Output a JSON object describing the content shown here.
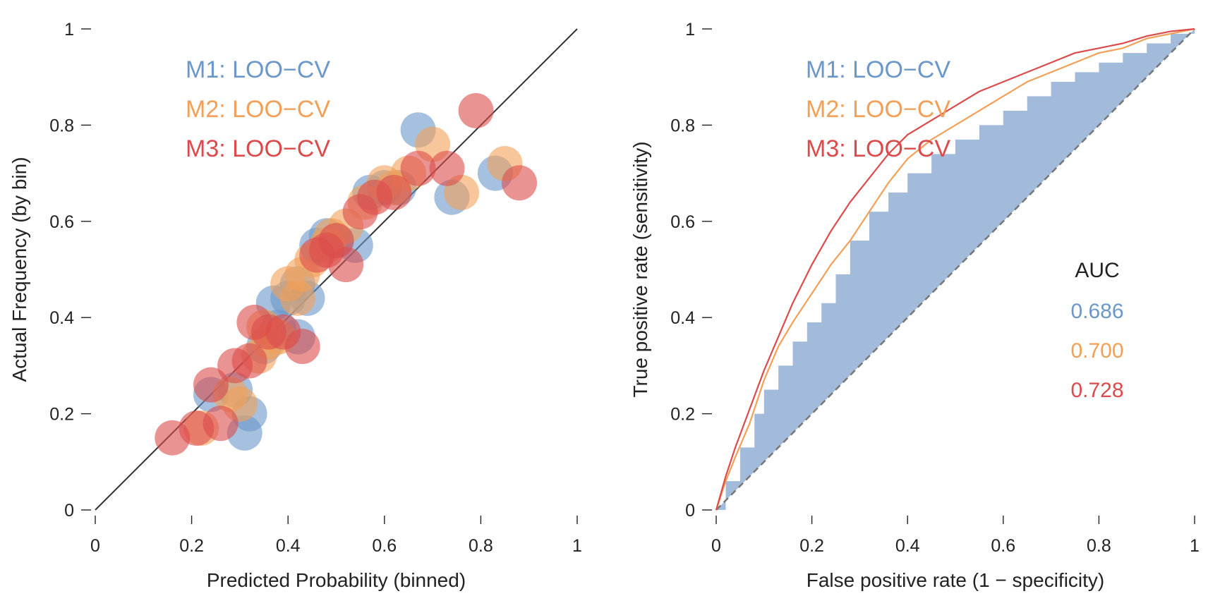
{
  "colors": {
    "m1": "#6b98c9",
    "m2": "#f2a057",
    "m3": "#dc4b4b",
    "axis": "#222222",
    "roc_fill": "#a3bbda",
    "diagonal": "#777777"
  },
  "legend": [
    "M1: LOO−CV",
    "M2: LOO−CV",
    "M3: LOO−CV"
  ],
  "chart_data": [
    {
      "type": "scatter",
      "xlabel": "Predicted Probability (binned)",
      "ylabel": "Actual Frequency (by bin)",
      "xlim": [
        0,
        1
      ],
      "ylim": [
        0,
        1
      ],
      "xticks": [
        0,
        0.2,
        0.4,
        0.6,
        0.8,
        1
      ],
      "yticks": [
        0,
        0.2,
        0.4,
        0.6,
        0.8,
        1
      ],
      "xtick_labels": [
        "0",
        "0.2",
        "0.4",
        "0.6",
        "0.8",
        "1"
      ],
      "ytick_labels": [
        "0",
        "0.2",
        "0.4",
        "0.6",
        "0.8",
        "1"
      ],
      "reference_line": [
        [
          0,
          0
        ],
        [
          1,
          1
        ]
      ],
      "legend_placement": "top-left",
      "series": [
        {
          "name": "M1: LOO−CV",
          "x": [
            0.24,
            0.29,
            0.31,
            0.32,
            0.35,
            0.37,
            0.38,
            0.4,
            0.42,
            0.42,
            0.44,
            0.46,
            0.48,
            0.5,
            0.54,
            0.57,
            0.6,
            0.63,
            0.67,
            0.74,
            0.83
          ],
          "y": [
            0.24,
            0.25,
            0.16,
            0.2,
            0.34,
            0.43,
            0.38,
            0.44,
            0.36,
            0.47,
            0.44,
            0.55,
            0.57,
            0.56,
            0.55,
            0.66,
            0.67,
            0.67,
            0.79,
            0.65,
            0.7
          ]
        },
        {
          "name": "M2: LOO−CV",
          "x": [
            0.22,
            0.28,
            0.3,
            0.34,
            0.35,
            0.36,
            0.38,
            0.4,
            0.42,
            0.43,
            0.45,
            0.48,
            0.49,
            0.52,
            0.56,
            0.6,
            0.62,
            0.65,
            0.7,
            0.76,
            0.85
          ],
          "y": [
            0.17,
            0.24,
            0.22,
            0.32,
            0.38,
            0.35,
            0.36,
            0.47,
            0.44,
            0.49,
            0.52,
            0.55,
            0.57,
            0.59,
            0.64,
            0.68,
            0.67,
            0.7,
            0.76,
            0.66,
            0.72
          ]
        },
        {
          "name": "M3: LOO−CV",
          "x": [
            0.16,
            0.21,
            0.24,
            0.26,
            0.29,
            0.32,
            0.33,
            0.36,
            0.39,
            0.43,
            0.46,
            0.48,
            0.5,
            0.52,
            0.55,
            0.58,
            0.62,
            0.67,
            0.73,
            0.79,
            0.88
          ],
          "y": [
            0.15,
            0.17,
            0.26,
            0.18,
            0.3,
            0.31,
            0.39,
            0.37,
            0.37,
            0.34,
            0.53,
            0.54,
            0.56,
            0.51,
            0.62,
            0.65,
            0.66,
            0.71,
            0.71,
            0.83,
            0.68
          ]
        }
      ]
    },
    {
      "type": "line",
      "xlabel": "False positive rate (1 − specificity)",
      "ylabel": "True positive rate (sensitivity)",
      "xlim": [
        0,
        1
      ],
      "ylim": [
        0,
        1
      ],
      "xticks": [
        0,
        0.2,
        0.4,
        0.6,
        0.8,
        1
      ],
      "yticks": [
        0,
        0.2,
        0.4,
        0.6,
        0.8,
        1
      ],
      "xtick_labels": [
        "0",
        "0.2",
        "0.4",
        "0.6",
        "0.8",
        "1"
      ],
      "ytick_labels": [
        "0",
        "0.2",
        "0.4",
        "0.6",
        "0.8",
        "1"
      ],
      "legend_placement": "top-left",
      "auc_title": "AUC",
      "series": [
        {
          "name": "M1: LOO−CV",
          "auc": "0.686",
          "style": "filled-step",
          "points": [
            [
              0,
              0
            ],
            [
              0.02,
              0.06
            ],
            [
              0.05,
              0.13
            ],
            [
              0.08,
              0.2
            ],
            [
              0.1,
              0.25
            ],
            [
              0.13,
              0.3
            ],
            [
              0.16,
              0.35
            ],
            [
              0.19,
              0.39
            ],
            [
              0.22,
              0.43
            ],
            [
              0.25,
              0.49
            ],
            [
              0.28,
              0.56
            ],
            [
              0.32,
              0.62
            ],
            [
              0.36,
              0.66
            ],
            [
              0.4,
              0.7
            ],
            [
              0.45,
              0.74
            ],
            [
              0.5,
              0.77
            ],
            [
              0.55,
              0.8
            ],
            [
              0.6,
              0.83
            ],
            [
              0.65,
              0.86
            ],
            [
              0.7,
              0.89
            ],
            [
              0.75,
              0.91
            ],
            [
              0.8,
              0.93
            ],
            [
              0.85,
              0.95
            ],
            [
              0.9,
              0.97
            ],
            [
              0.95,
              0.99
            ],
            [
              1,
              1
            ]
          ]
        },
        {
          "name": "M2: LOO−CV",
          "auc": "0.700",
          "style": "line",
          "points": [
            [
              0,
              0
            ],
            [
              0.02,
              0.06
            ],
            [
              0.04,
              0.11
            ],
            [
              0.07,
              0.18
            ],
            [
              0.1,
              0.27
            ],
            [
              0.13,
              0.34
            ],
            [
              0.16,
              0.39
            ],
            [
              0.2,
              0.45
            ],
            [
              0.24,
              0.51
            ],
            [
              0.28,
              0.56
            ],
            [
              0.32,
              0.62
            ],
            [
              0.36,
              0.68
            ],
            [
              0.4,
              0.73
            ],
            [
              0.45,
              0.77
            ],
            [
              0.5,
              0.8
            ],
            [
              0.55,
              0.83
            ],
            [
              0.6,
              0.86
            ],
            [
              0.65,
              0.89
            ],
            [
              0.7,
              0.91
            ],
            [
              0.75,
              0.93
            ],
            [
              0.8,
              0.95
            ],
            [
              0.85,
              0.96
            ],
            [
              0.9,
              0.98
            ],
            [
              0.95,
              0.99
            ],
            [
              1,
              1
            ]
          ]
        },
        {
          "name": "M3: LOO−CV",
          "auc": "0.728",
          "style": "line",
          "points": [
            [
              0,
              0
            ],
            [
              0.02,
              0.07
            ],
            [
              0.04,
              0.13
            ],
            [
              0.07,
              0.21
            ],
            [
              0.1,
              0.29
            ],
            [
              0.13,
              0.36
            ],
            [
              0.16,
              0.43
            ],
            [
              0.2,
              0.51
            ],
            [
              0.24,
              0.58
            ],
            [
              0.28,
              0.64
            ],
            [
              0.32,
              0.69
            ],
            [
              0.36,
              0.74
            ],
            [
              0.4,
              0.78
            ],
            [
              0.45,
              0.81
            ],
            [
              0.5,
              0.84
            ],
            [
              0.55,
              0.87
            ],
            [
              0.6,
              0.89
            ],
            [
              0.65,
              0.91
            ],
            [
              0.7,
              0.93
            ],
            [
              0.75,
              0.95
            ],
            [
              0.8,
              0.96
            ],
            [
              0.85,
              0.97
            ],
            [
              0.9,
              0.985
            ],
            [
              0.95,
              0.995
            ],
            [
              1,
              1
            ]
          ]
        }
      ],
      "reference_line": [
        [
          0,
          0
        ],
        [
          1,
          1
        ]
      ]
    }
  ]
}
